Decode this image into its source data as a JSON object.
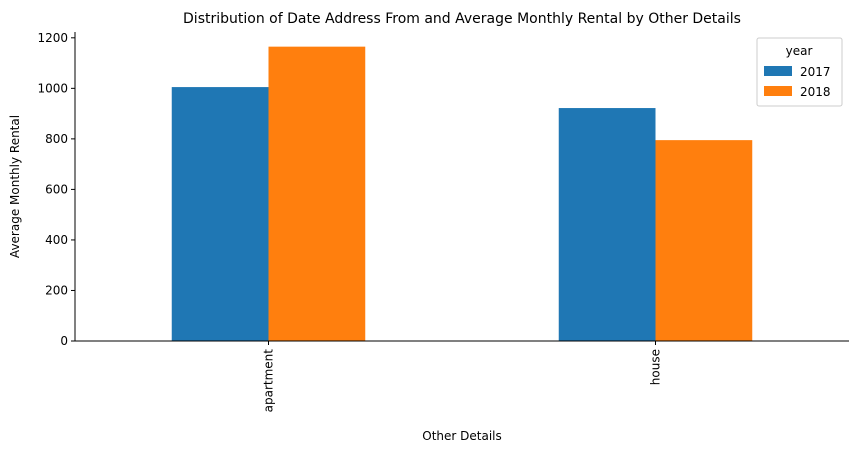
{
  "chart_data": {
    "type": "bar",
    "title": "Distribution of Date Address From and Average Monthly Rental by Other Details",
    "xlabel": "Other Details",
    "ylabel": "Average Monthly Rental",
    "categories": [
      "apartment",
      "house"
    ],
    "series": [
      {
        "name": "2017",
        "values": [
          1005,
          922
        ],
        "color": "#1f77b4"
      },
      {
        "name": "2018",
        "values": [
          1165,
          795
        ],
        "color": "#ff7f0e"
      }
    ],
    "yticks": [
      0,
      200,
      400,
      600,
      800,
      1000,
      1200
    ],
    "ylim": [
      0,
      1223
    ],
    "legend": {
      "title": "year",
      "position": "top-right"
    },
    "grid": false
  }
}
